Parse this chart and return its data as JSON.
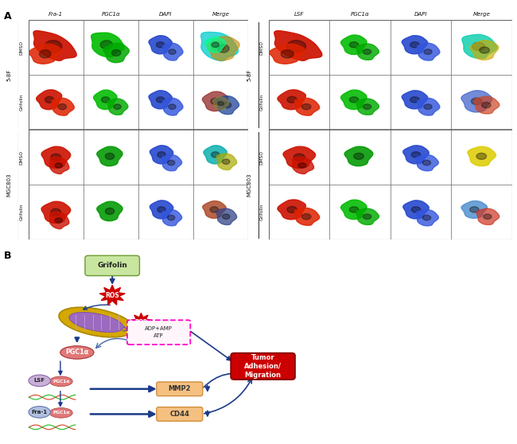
{
  "fig_width": 6.5,
  "fig_height": 5.58,
  "bg_color": "#ffffff",
  "panel_a_label": "A",
  "panel_b_label": "B",
  "left_col_labels": [
    "Fra-1",
    "PGC1α",
    "DAPI",
    "Merge"
  ],
  "right_col_labels": [
    "LSF",
    "PGC1α",
    "DAPI",
    "Merge"
  ],
  "row_labels": [
    "DMSO",
    "Grifolin",
    "DMSO",
    "Grifolin"
  ],
  "group_labels": [
    "5-8F",
    "MGC803"
  ],
  "schematic": {
    "grifolin_box_color": "#c8e6a0",
    "grifolin_edge_color": "#6a9a30",
    "grifolin_text": "Grifolin",
    "ros_color": "#cc0000",
    "ros_text": "ROS",
    "mito_outer_color": "#d4a800",
    "mito_inner_color": "#9b6abf",
    "pgc1a_color": "#e07878",
    "pgc1a_text": "PGC1α",
    "lsf_color": "#c8b0d8",
    "lsf_text": "LSF",
    "fra1_color": "#b0c0e0",
    "fra1_text": "Fra-1",
    "atp_border_color": "#ff00cc",
    "adp_text": "ADP+AMP",
    "atp_text": "ATP",
    "mmp2_color": "#f5c080",
    "mmp2_text": "MMP2",
    "cd44_color": "#f5c080",
    "cd44_text": "CD44",
    "tumor_color": "#cc0000",
    "tumor_text": "Tumor\nAdhesion/\nMigration",
    "arrow_color": "#1a3a8a",
    "dna_color1": "#cc0000",
    "dna_color2": "#00aa00"
  }
}
